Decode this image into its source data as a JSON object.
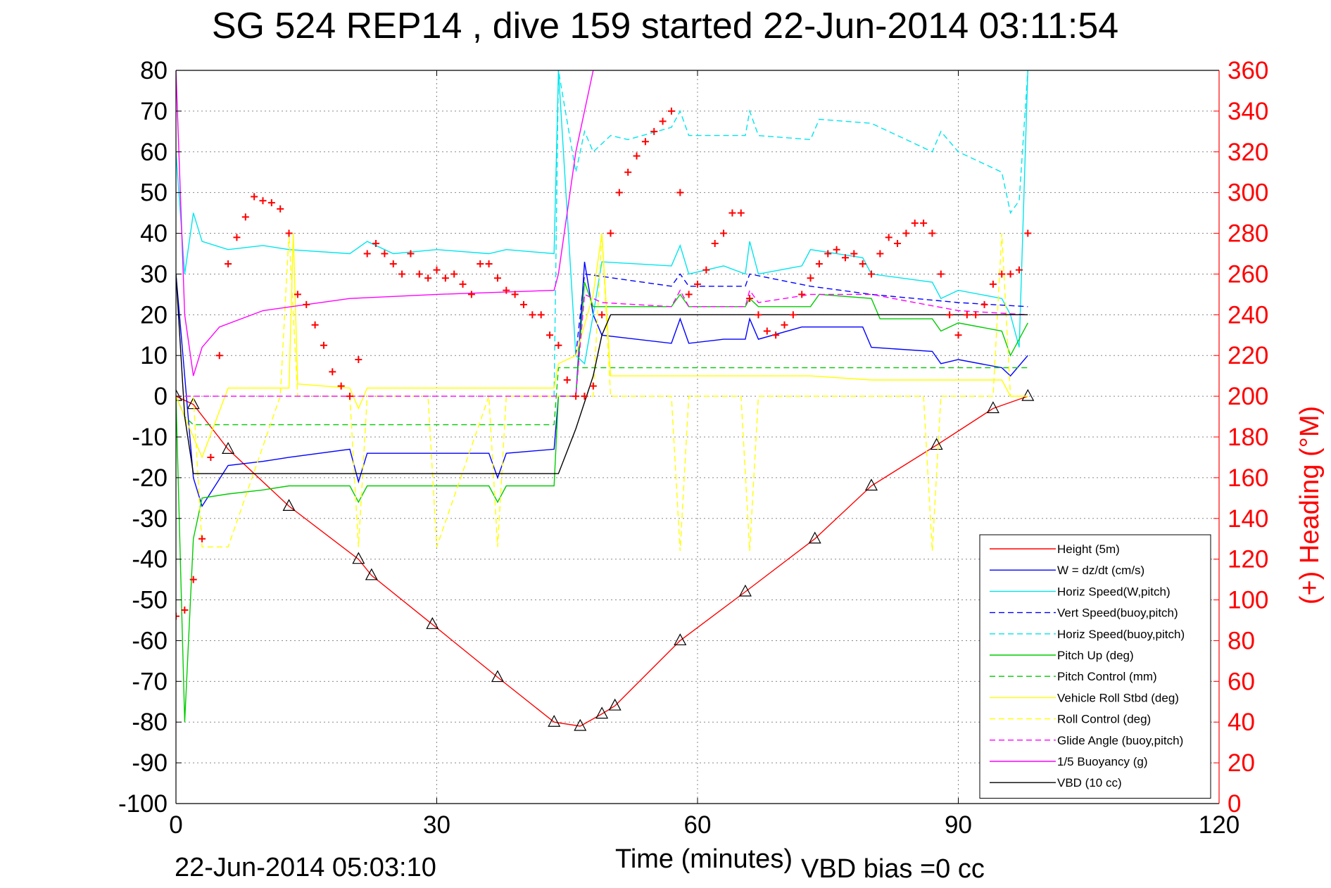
{
  "title": "SG 524   REP14  , dive 159 started 22-Jun-2014 03:11:54",
  "footer": {
    "date": "22-Jun-2014 05:03:10",
    "vbd_bias": "VBD bias =0 cc"
  },
  "chart_data": {
    "type": "line",
    "xlabel": "Time (minutes)",
    "ylabel": "",
    "y2label": "(+) Heading (°M)",
    "xlim": [
      0,
      120
    ],
    "ylim": [
      -100,
      80
    ],
    "y2lim": [
      0,
      360
    ],
    "grid": true,
    "legend_position": "bottom-right",
    "xticks": [
      "0",
      "30",
      "60",
      "90",
      "120"
    ],
    "yticks": [
      "80",
      "70",
      "60",
      "50",
      "40",
      "30",
      "20",
      "10",
      "0",
      "-10",
      "-20",
      "-30",
      "-40",
      "-50",
      "-60",
      "-70",
      "-80",
      "-90",
      "-100"
    ],
    "y2ticks": [
      "360",
      "340",
      "320",
      "300",
      "280",
      "260",
      "240",
      "220",
      "200",
      "180",
      "160",
      "140",
      "120",
      "100",
      "80",
      "60",
      "40",
      "20",
      "0"
    ],
    "series": [
      {
        "name": "Height (5m)",
        "color": "#ff0000",
        "style": "solid",
        "x": [
          0,
          2,
          6,
          13,
          21,
          22.5,
          29.5,
          37,
          43.5,
          46.5,
          49,
          50.5,
          58,
          65.5,
          73.5,
          80,
          87.5,
          94,
          98
        ],
        "y": [
          0,
          -2,
          -13,
          -27,
          -40,
          -44,
          -56,
          -69,
          -80,
          -81,
          -78,
          -76,
          -60,
          -48,
          -35,
          -22,
          -12,
          -3,
          0
        ]
      },
      {
        "name": "W = dz/dt (cm/s)",
        "color": "#0000ff",
        "style": "solid",
        "x": [
          0,
          1,
          2,
          3,
          6,
          10,
          13,
          20,
          21,
          22,
          25,
          30,
          36,
          37,
          38,
          43.5,
          44,
          46,
          47,
          48,
          49,
          57,
          58,
          59,
          63,
          65.5,
          66,
          67,
          72,
          73,
          79,
          80,
          87,
          88,
          90,
          95,
          96,
          98
        ],
        "y": [
          30,
          5,
          -20,
          -27,
          -17,
          -16,
          -15,
          -13,
          -21,
          -14,
          -14,
          -14,
          -14,
          -20,
          -14,
          -13,
          0,
          0,
          33,
          20,
          15,
          13,
          19,
          13,
          14,
          14,
          19,
          14,
          17,
          17,
          17,
          12,
          11,
          8,
          9,
          7,
          5,
          10
        ]
      },
      {
        "name": "Horiz Speed(W,pitch)",
        "color": "#00e5ee",
        "style": "solid",
        "x": [
          0,
          1,
          2,
          3,
          6,
          10,
          13,
          20,
          22,
          25,
          30,
          36,
          38,
          43.5,
          44,
          45,
          46,
          47,
          48,
          49,
          57,
          58,
          59,
          63,
          65.5,
          66,
          67,
          72,
          73,
          79,
          80,
          87,
          88,
          90,
          95,
          96,
          97,
          98
        ],
        "y": [
          60,
          30,
          45,
          38,
          36,
          37,
          36,
          35,
          38,
          35,
          36,
          35,
          36,
          35,
          80,
          45,
          10,
          8,
          20,
          33,
          32,
          37,
          30,
          32,
          30,
          38,
          30,
          32,
          36,
          34,
          30,
          28,
          24,
          26,
          24,
          20,
          12,
          80
        ]
      },
      {
        "name": "Vert Speed(buoy,pitch)",
        "color": "#0000ff",
        "style": "dashed",
        "x": [
          46,
          47,
          57,
          58,
          59,
          65.5,
          66,
          73,
          80,
          90,
          98
        ],
        "y": [
          10,
          30,
          27,
          30,
          27,
          27,
          30,
          27,
          25,
          23,
          22
        ]
      },
      {
        "name": "Horiz Speed(buoy,pitch)",
        "color": "#00e5ee",
        "style": "dashed",
        "x": [
          43.5,
          44,
          46,
          47,
          48,
          50,
          52,
          57,
          58,
          59,
          65.5,
          66,
          67,
          73,
          74,
          80,
          85,
          87,
          88,
          90,
          95,
          96,
          97,
          98
        ],
        "y": [
          0,
          80,
          55,
          65,
          60,
          64,
          63,
          66,
          70,
          64,
          64,
          70,
          64,
          63,
          68,
          67,
          62,
          60,
          65,
          60,
          55,
          45,
          48,
          80
        ]
      },
      {
        "name": "Pitch Up (deg)",
        "color": "#00cc00",
        "style": "solid",
        "x": [
          0,
          1,
          2,
          3,
          6,
          10,
          13,
          20,
          21,
          22,
          25,
          30,
          36,
          37,
          38,
          43.5,
          44,
          46,
          47,
          48,
          49,
          57,
          58,
          59,
          65.5,
          66,
          67,
          73,
          74,
          80,
          81,
          87,
          88,
          90,
          95,
          96,
          98
        ],
        "y": [
          0,
          -80,
          -35,
          -25,
          -24,
          -23,
          -22,
          -22,
          -26,
          -22,
          -22,
          -22,
          -22,
          -26,
          -22,
          -22,
          0,
          0,
          28,
          22,
          22,
          22,
          25,
          22,
          22,
          24,
          22,
          22,
          25,
          24,
          19,
          19,
          16,
          18,
          16,
          10,
          18
        ]
      },
      {
        "name": "Pitch Control (mm)",
        "color": "#00cc00",
        "style": "dashed",
        "x": [
          0,
          1,
          2,
          3,
          30,
          43.5,
          44,
          49,
          98
        ],
        "y": [
          0,
          -5,
          -7,
          -7,
          -7,
          -7,
          7,
          7,
          7
        ]
      },
      {
        "name": "Vehicle Roll Stbd (deg)",
        "color": "#ffff00",
        "style": "solid",
        "x": [
          0,
          2,
          3,
          6,
          13,
          13.5,
          14,
          20,
          21,
          22,
          30,
          37,
          38,
          43.5,
          44,
          46,
          48,
          49,
          50,
          58,
          65,
          73,
          80,
          87,
          88,
          95,
          96,
          98
        ],
        "y": [
          0,
          -10,
          -15,
          2,
          2,
          40,
          3,
          2,
          -3,
          2,
          2,
          2,
          2,
          2,
          8,
          10,
          25,
          40,
          5,
          5,
          5,
          5,
          4,
          4,
          4,
          4,
          0,
          0
        ]
      },
      {
        "name": "Roll Control (deg)",
        "color": "#ffff00",
        "style": "dashed",
        "x": [
          0,
          2,
          3,
          6,
          12,
          13,
          14,
          20,
          21,
          22,
          29,
          30,
          36,
          37,
          38,
          43.5,
          44,
          48,
          49,
          50,
          57,
          58,
          59,
          65,
          66,
          67,
          86,
          87,
          88,
          94,
          95,
          96,
          98
        ],
        "y": [
          0,
          0,
          -37,
          -37,
          0,
          40,
          0,
          0,
          -37,
          0,
          0,
          -37,
          0,
          -37,
          0,
          0,
          0,
          0,
          40,
          0,
          0,
          -38,
          0,
          0,
          -38,
          0,
          0,
          -38,
          0,
          0,
          40,
          0,
          0
        ]
      },
      {
        "name": "Glide Angle (buoy,pitch)",
        "color": "#ff00ff",
        "style": "dashed",
        "x": [
          0,
          43.5,
          44,
          46,
          47,
          49,
          57,
          58,
          59,
          65.5,
          66,
          67,
          73,
          80,
          90,
          98
        ],
        "y": [
          0,
          0,
          0,
          0,
          25,
          23,
          22,
          26,
          22,
          22,
          26,
          23,
          25,
          25,
          21,
          20
        ]
      },
      {
        "name": "1/5 Buoyancy (g)",
        "color": "#ff00ff",
        "style": "solid",
        "x": [
          0,
          1,
          2,
          3,
          5,
          10,
          20,
          30,
          43.5,
          44,
          46,
          48
        ],
        "y": [
          80,
          20,
          5,
          12,
          17,
          21,
          24,
          25,
          26,
          30,
          60,
          80
        ]
      },
      {
        "name": "VBD (10 cc)",
        "color": "#000000",
        "style": "solid",
        "x": [
          0,
          1,
          2,
          3,
          43.5,
          44,
          46,
          48,
          49,
          50,
          98
        ],
        "y": [
          30,
          -5,
          -19,
          -19,
          -19,
          -19,
          -8,
          5,
          15,
          20,
          20
        ]
      },
      {
        "name": "Heading",
        "axis": "right",
        "color": "#ff0000",
        "style": "plus",
        "x": [
          0,
          1,
          2,
          3,
          4,
          5,
          6,
          7,
          8,
          9,
          10,
          11,
          12,
          13,
          14,
          15,
          16,
          17,
          18,
          19,
          20,
          21,
          22,
          23,
          24,
          25,
          26,
          27,
          28,
          29,
          30,
          31,
          32,
          33,
          34,
          35,
          36,
          37,
          38,
          39,
          40,
          41,
          42,
          43,
          44,
          45,
          46,
          47,
          48,
          49,
          50,
          51,
          52,
          53,
          54,
          55,
          56,
          57,
          58,
          59,
          60,
          61,
          62,
          63,
          64,
          65,
          66,
          67,
          68,
          69,
          70,
          71,
          72,
          73,
          74,
          75,
          76,
          77,
          78,
          79,
          80,
          81,
          82,
          83,
          84,
          85,
          86,
          87,
          88,
          89,
          90,
          91,
          92,
          93,
          94,
          95,
          96,
          97,
          98
        ],
        "y": [
          92,
          95,
          110,
          130,
          170,
          220,
          265,
          278,
          288,
          298,
          296,
          295,
          292,
          280,
          250,
          245,
          235,
          225,
          212,
          205,
          200,
          218,
          270,
          275,
          270,
          265,
          260,
          270,
          260,
          258,
          262,
          258,
          260,
          255,
          250,
          265,
          265,
          258,
          252,
          250,
          245,
          240,
          240,
          230,
          225,
          208,
          200,
          200,
          205,
          240,
          280,
          300,
          310,
          318,
          325,
          330,
          335,
          340,
          300,
          250,
          255,
          262,
          275,
          280,
          290,
          290,
          248,
          240,
          232,
          230,
          235,
          240,
          250,
          258,
          265,
          270,
          272,
          268,
          270,
          265,
          260,
          270,
          278,
          275,
          280,
          285,
          285,
          280,
          260,
          240,
          230,
          240,
          240,
          245,
          255,
          260,
          260,
          262,
          280
        ]
      }
    ]
  }
}
